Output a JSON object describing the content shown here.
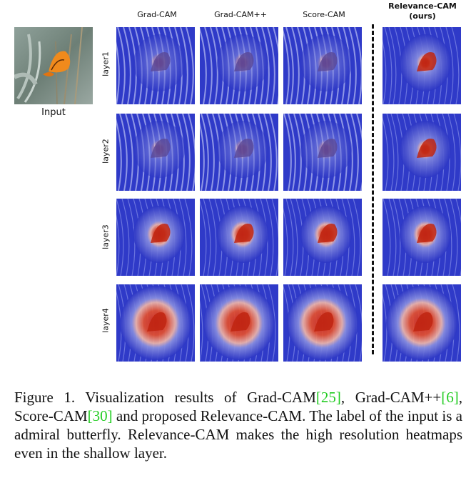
{
  "figure": {
    "input_label": "Input",
    "columns": [
      "Grad-CAM",
      "Grad-CAM++",
      "Score-CAM"
    ],
    "ours_label_line1": "Relevance-CAM",
    "ours_label_line2": "(ours)",
    "rows": [
      "layer1",
      "layer2",
      "layer3",
      "layer4"
    ]
  },
  "caption": {
    "prefix": "Figure 1. Visualization results of Grad-CAM",
    "cite1": "[25]",
    "part2": ", Grad-CAM++",
    "cite2": "[6]",
    "part3": ", Score-CAM",
    "cite3": "[30]",
    "suffix": " and proposed Relevance-CAM. The label of the input is a admiral butterfly. Relevance-CAM makes the high resolution heatmaps even in the shallow layer."
  },
  "colors": {
    "heat_low": "#2a34c8",
    "heat_high": "#d6281a",
    "citation": "#22cc22"
  }
}
